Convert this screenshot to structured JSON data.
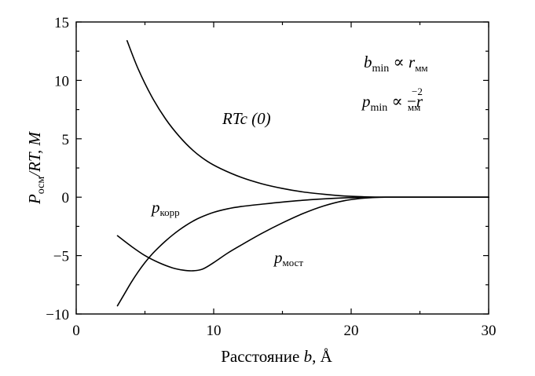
{
  "chart_data": {
    "type": "line",
    "xlabel_prefix": "Расстояние ",
    "xlabel_var": "b",
    "xlabel_unit": ", Å",
    "ylabel_var": "P",
    "ylabel_sub": "осм",
    "ylabel_rest": "/RT, М",
    "xlim": [
      0,
      30
    ],
    "ylim": [
      -10,
      15
    ],
    "xticks": [
      0,
      10,
      20,
      30
    ],
    "yticks": [
      -10,
      -5,
      0,
      5,
      10,
      15
    ],
    "grid": false,
    "legend": "none",
    "series": [
      {
        "label_main": "RTc (0)",
        "x": [
          3.7,
          4.5,
          5.5,
          6.5,
          7.5,
          8.5,
          9.5,
          10.5,
          12,
          13.5,
          15,
          16.5,
          18,
          19.5,
          21,
          22.5,
          25,
          30
        ],
        "y": [
          13.4,
          11.0,
          8.6,
          6.7,
          5.2,
          4.0,
          3.1,
          2.45,
          1.7,
          1.15,
          0.75,
          0.45,
          0.25,
          0.1,
          0.03,
          0.0,
          0.0,
          0.0
        ]
      },
      {
        "label_var": "p",
        "label_sub": "корр",
        "x": [
          3.0,
          3.5,
          4.0,
          4.5,
          5.0,
          5.5,
          6.0,
          6.5,
          7.0,
          7.5,
          8.0,
          8.5,
          9.0,
          10,
          11,
          12,
          13.5,
          15,
          17,
          19,
          21,
          22.5,
          25,
          30
        ],
        "y": [
          -9.3,
          -8.3,
          -7.3,
          -6.4,
          -5.6,
          -4.9,
          -4.3,
          -3.75,
          -3.25,
          -2.8,
          -2.4,
          -2.05,
          -1.75,
          -1.3,
          -1.0,
          -0.8,
          -0.6,
          -0.42,
          -0.22,
          -0.08,
          -0.02,
          0.0,
          0.0,
          0.0
        ]
      },
      {
        "label_var": "p",
        "label_sub": "мост",
        "x": [
          3.0,
          4.0,
          5.0,
          6.0,
          7.0,
          7.8,
          8.5,
          9.2,
          10,
          11,
          12,
          13.5,
          15,
          16.5,
          18,
          19.5,
          21,
          22.5,
          25,
          30
        ],
        "y": [
          -3.3,
          -4.2,
          -5.0,
          -5.6,
          -6.05,
          -6.25,
          -6.3,
          -6.15,
          -5.6,
          -4.8,
          -4.1,
          -3.1,
          -2.2,
          -1.4,
          -0.75,
          -0.3,
          -0.08,
          0.0,
          0.0,
          0.0
        ]
      }
    ],
    "annotations": {
      "bmin": {
        "var": "b",
        "sub": "min",
        "rel": " ∝ ",
        "var2": "r",
        "sub2": "мм"
      },
      "pmin": {
        "var": "p",
        "sub": "min",
        "rel": " ∝ −",
        "var2": "r",
        "sup2": "−2",
        "sub2": "мм"
      }
    }
  }
}
